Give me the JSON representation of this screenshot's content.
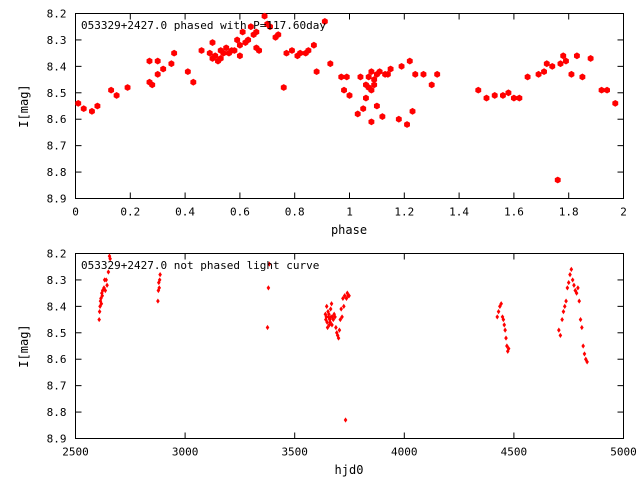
{
  "chart_data": [
    {
      "type": "scatter",
      "title": "053329+2427.0 phased with P=117.60day",
      "xlabel": "phase",
      "ylabel": "I[mag]",
      "xlim": [
        0,
        2
      ],
      "ylim": [
        8.2,
        8.9
      ],
      "y_inverted": true,
      "x_ticks": [
        "0",
        "0.2",
        "0.4",
        "0.6",
        "0.8",
        "1",
        "1.2",
        "1.4",
        "1.6",
        "1.8",
        "2"
      ],
      "y_ticks": [
        "8.2",
        "8.3",
        "8.4",
        "8.5",
        "8.6",
        "8.7",
        "8.8",
        "8.9"
      ],
      "grid": false,
      "marker": "filled-hexagon",
      "series": [
        {
          "color": "#ff0000",
          "x": [
            0.01,
            0.03,
            0.06,
            0.08,
            0.13,
            0.15,
            0.19,
            0.27,
            0.27,
            0.28,
            0.3,
            0.3,
            0.32,
            0.35,
            0.36,
            0.41,
            0.43,
            0.46,
            0.49,
            0.5,
            0.5,
            0.51,
            0.52,
            0.53,
            0.53,
            0.54,
            0.55,
            0.56,
            0.57,
            0.58,
            0.59,
            0.6,
            0.6,
            0.61,
            0.62,
            0.63,
            0.64,
            0.65,
            0.66,
            0.66,
            0.67,
            0.69,
            0.7,
            0.71,
            0.73,
            0.74,
            0.76,
            0.77,
            0.79,
            0.81,
            0.82,
            0.84,
            0.85,
            0.87,
            0.88,
            0.91,
            0.93,
            0.97,
            0.98,
            0.99,
            1.0,
            1.03,
            1.04,
            1.05,
            1.06,
            1.06,
            1.07,
            1.07,
            1.08,
            1.08,
            1.08,
            1.09,
            1.09,
            1.1,
            1.1,
            1.11,
            1.12,
            1.13,
            1.14,
            1.15,
            1.18,
            1.19,
            1.21,
            1.22,
            1.23,
            1.24,
            1.27,
            1.3,
            1.32,
            1.47,
            1.5,
            1.53,
            1.56,
            1.58,
            1.6,
            1.62,
            1.65,
            1.69,
            1.71,
            1.72,
            1.74,
            1.76,
            1.77,
            1.78,
            1.79,
            1.81,
            1.83,
            1.85,
            1.88,
            1.92,
            1.94,
            1.97
          ],
          "y": [
            8.54,
            8.56,
            8.57,
            8.55,
            8.49,
            8.51,
            8.48,
            8.46,
            8.38,
            8.47,
            8.38,
            8.43,
            8.41,
            8.39,
            8.35,
            8.42,
            8.46,
            8.34,
            8.35,
            8.31,
            8.37,
            8.36,
            8.38,
            8.37,
            8.34,
            8.35,
            8.33,
            8.35,
            8.34,
            8.34,
            8.3,
            8.32,
            8.36,
            8.27,
            8.31,
            8.3,
            8.25,
            8.28,
            8.27,
            8.33,
            8.34,
            8.21,
            8.24,
            8.25,
            8.29,
            8.28,
            8.48,
            8.35,
            8.34,
            8.36,
            8.35,
            8.35,
            8.34,
            8.32,
            8.42,
            8.23,
            8.39,
            8.44,
            8.49,
            8.44,
            8.51,
            8.58,
            8.44,
            8.56,
            8.52,
            8.47,
            8.44,
            8.48,
            8.49,
            8.61,
            8.42,
            8.47,
            8.45,
            8.43,
            8.55,
            8.42,
            8.59,
            8.43,
            8.43,
            8.41,
            8.6,
            8.4,
            8.62,
            8.38,
            8.57,
            8.43,
            8.43,
            8.47,
            8.43,
            8.49,
            8.52,
            8.51,
            8.51,
            8.5,
            8.52,
            8.52,
            8.44,
            8.43,
            8.42,
            8.39,
            8.4,
            8.83,
            8.39,
            8.36,
            8.38,
            8.43,
            8.36,
            8.44,
            8.37,
            8.49,
            8.49,
            8.54
          ]
        }
      ]
    },
    {
      "type": "scatter",
      "title": "053329+2427.0 not phased light curve",
      "xlabel": "hjd0",
      "ylabel": "I[mag]",
      "xlim": [
        2500,
        5000
      ],
      "ylim": [
        8.2,
        8.9
      ],
      "y_inverted": true,
      "x_ticks": [
        "2500",
        "3000",
        "3500",
        "4000",
        "4500",
        "5000"
      ],
      "y_ticks": [
        "8.2",
        "8.3",
        "8.4",
        "8.5",
        "8.6",
        "8.7",
        "8.8",
        "8.9"
      ],
      "grid": false,
      "marker": "small-diamond",
      "series": [
        {
          "color": "#ff0000",
          "x": [
            2608,
            2610,
            2612,
            2614,
            2616,
            2618,
            2620,
            2622,
            2624,
            2630,
            2633,
            2636,
            2640,
            2644,
            2650,
            2655,
            2658,
            2876,
            2878,
            2880,
            2882,
            2884,
            2886,
            3376,
            3380,
            3384,
            3640,
            3642,
            3644,
            3646,
            3648,
            3650,
            3652,
            3654,
            3656,
            3658,
            3660,
            3662,
            3664,
            3666,
            3668,
            3670,
            3672,
            3676,
            3680,
            3684,
            3688,
            3692,
            3696,
            3700,
            3704,
            3708,
            3712,
            3716,
            3720,
            3724,
            3728,
            3732,
            3736,
            3740,
            3744,
            3748,
            4424,
            4430,
            4436,
            4442,
            4448,
            4452,
            4456,
            4460,
            4464,
            4468,
            4472,
            4476,
            4705,
            4712,
            4720,
            4726,
            4732,
            4738,
            4744,
            4750,
            4756,
            4762,
            4768,
            4774,
            4780,
            4786,
            4792,
            4798,
            4804,
            4810,
            4816,
            4822,
            4828,
            4834
          ],
          "y": [
            8.45,
            8.42,
            8.4,
            8.38,
            8.37,
            8.39,
            8.35,
            8.36,
            8.34,
            8.33,
            8.3,
            8.34,
            8.3,
            8.32,
            8.27,
            8.21,
            8.22,
            8.38,
            8.34,
            8.31,
            8.33,
            8.3,
            8.28,
            8.48,
            8.33,
            8.24,
            8.43,
            8.45,
            8.44,
            8.4,
            8.46,
            8.48,
            8.42,
            8.44,
            8.43,
            8.47,
            8.45,
            8.46,
            8.41,
            8.44,
            8.39,
            8.47,
            8.44,
            8.45,
            8.43,
            8.44,
            8.48,
            8.5,
            8.51,
            8.52,
            8.49,
            8.45,
            8.41,
            8.44,
            8.37,
            8.4,
            8.36,
            8.83,
            8.37,
            8.35,
            8.36,
            8.36,
            8.44,
            8.42,
            8.4,
            8.39,
            8.44,
            8.45,
            8.47,
            8.49,
            8.52,
            8.55,
            8.57,
            8.56,
            8.49,
            8.51,
            8.45,
            8.42,
            8.4,
            8.38,
            8.33,
            8.31,
            8.28,
            8.26,
            8.3,
            8.32,
            8.34,
            8.35,
            8.33,
            8.38,
            8.45,
            8.48,
            8.55,
            8.58,
            8.6,
            8.61
          ]
        }
      ]
    }
  ]
}
